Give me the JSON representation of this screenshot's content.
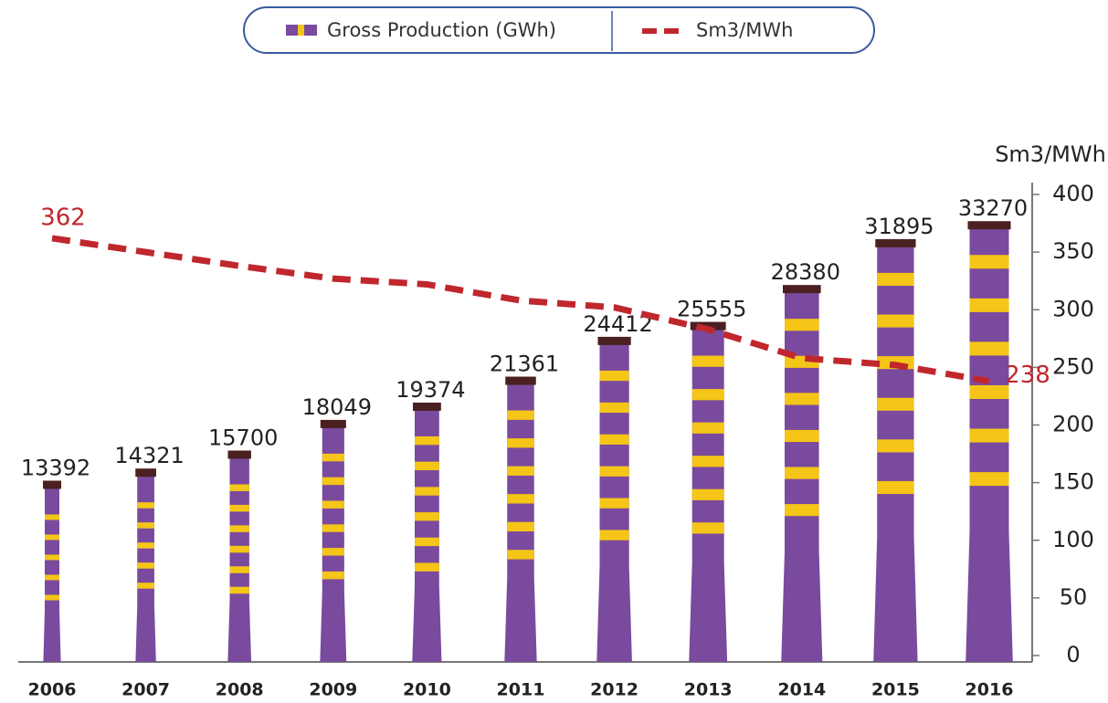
{
  "chart_data": {
    "type": "bar-line",
    "categories": [
      "2006",
      "2007",
      "2008",
      "2009",
      "2010",
      "2011",
      "2012",
      "2013",
      "2014",
      "2015",
      "2016"
    ],
    "series": [
      {
        "name": "Gross Production (GWh)",
        "type": "bar",
        "color": "#7a4a9e",
        "values": [
          13392,
          14321,
          15700,
          18049,
          19374,
          21361,
          24412,
          25555,
          28380,
          31895,
          33270
        ],
        "value_labels": [
          "13,392",
          "14,321",
          "15,700",
          "18,049",
          "19,374",
          "21,361",
          "24,412",
          "25,555",
          "28,380",
          "31,895",
          "33,270"
        ]
      },
      {
        "name": "Sm3/MWh",
        "type": "line",
        "axis": "y2",
        "color": "#c0272d",
        "values": [
          362,
          350,
          338,
          327,
          322,
          308,
          302,
          283,
          258,
          252,
          238
        ]
      }
    ],
    "y2label": "Sm3/MWh",
    "y2lim": [
      0,
      400
    ],
    "y2ticks": [
      0,
      50,
      100,
      150,
      200,
      250,
      300,
      350,
      400
    ]
  }
}
